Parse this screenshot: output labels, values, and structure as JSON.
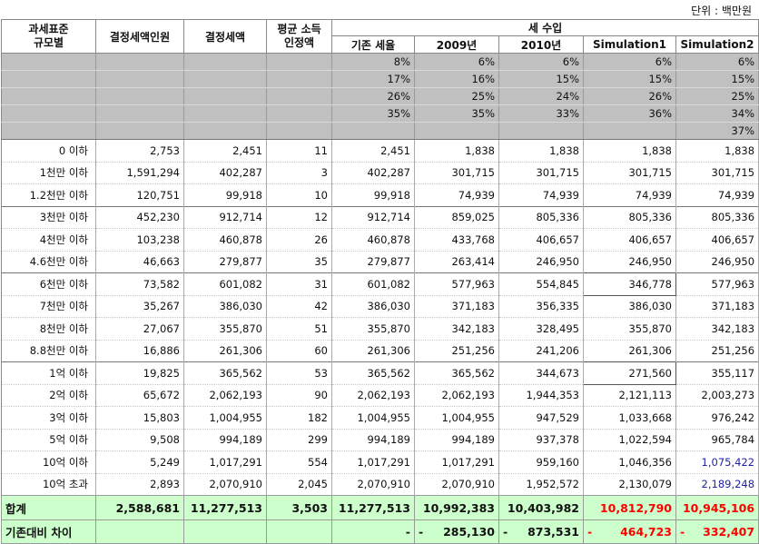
{
  "unit_label": "단위 : 백만원",
  "headers": {
    "bracket": "과세표준\n규모별",
    "payers": "결정세액인원",
    "tax": "결정세액",
    "avg_income": "평균 소득\n인정액",
    "revenue_group": "세 수입",
    "revenue_cols": [
      "기존 세율",
      "2009년",
      "2010년",
      "Simulation1",
      "Simulation2"
    ]
  },
  "rate_rows": [
    [
      "8%",
      "6%",
      "6%",
      "6%",
      "6%"
    ],
    [
      "17%",
      "16%",
      "15%",
      "15%",
      "15%"
    ],
    [
      "26%",
      "25%",
      "24%",
      "26%",
      "25%"
    ],
    [
      "35%",
      "35%",
      "33%",
      "36%",
      "34%"
    ],
    [
      "",
      "",
      "",
      "",
      "37%"
    ]
  ],
  "rows": [
    {
      "label": "0 이하",
      "payers": "2,753",
      "tax": "2,451",
      "avg": "11",
      "base": "2,451",
      "y2009": "1,838",
      "y2010": "1,838",
      "sim1": "1,838",
      "sim2": "1,838"
    },
    {
      "label": "1천만 이하",
      "payers": "1,591,294",
      "tax": "402,287",
      "avg": "3",
      "base": "402,287",
      "y2009": "301,715",
      "y2010": "301,715",
      "sim1": "301,715",
      "sim2": "301,715"
    },
    {
      "label": "1.2천만 이하",
      "payers": "120,751",
      "tax": "99,918",
      "avg": "10",
      "base": "99,918",
      "y2009": "74,939",
      "y2010": "74,939",
      "sim1": "74,939",
      "sim2": "74,939"
    },
    {
      "label": "3천만 이하",
      "payers": "452,230",
      "tax": "912,714",
      "avg": "12",
      "base": "912,714",
      "y2009": "859,025",
      "y2010": "805,336",
      "sim1": "805,336",
      "sim2": "805,336"
    },
    {
      "label": "4천만 이하",
      "payers": "103,238",
      "tax": "460,878",
      "avg": "26",
      "base": "460,878",
      "y2009": "433,768",
      "y2010": "406,657",
      "sim1": "406,657",
      "sim2": "406,657"
    },
    {
      "label": "4.6천만 이하",
      "payers": "46,663",
      "tax": "279,877",
      "avg": "35",
      "base": "279,877",
      "y2009": "263,414",
      "y2010": "246,950",
      "sim1": "246,950",
      "sim2": "246,950"
    },
    {
      "label": "6천만 이하",
      "payers": "73,582",
      "tax": "601,082",
      "avg": "31",
      "base": "601,082",
      "y2009": "577,963",
      "y2010": "554,845",
      "sim1": "346,778",
      "sim2": "577,963"
    },
    {
      "label": "7천만 이하",
      "payers": "35,267",
      "tax": "386,030",
      "avg": "42",
      "base": "386,030",
      "y2009": "371,183",
      "y2010": "356,335",
      "sim1": "386,030",
      "sim2": "371,183"
    },
    {
      "label": "8천만 이하",
      "payers": "27,067",
      "tax": "355,870",
      "avg": "51",
      "base": "355,870",
      "y2009": "342,183",
      "y2010": "328,495",
      "sim1": "355,870",
      "sim2": "342,183"
    },
    {
      "label": "8.8천만 이하",
      "payers": "16,886",
      "tax": "261,306",
      "avg": "60",
      "base": "261,306",
      "y2009": "251,256",
      "y2010": "241,206",
      "sim1": "261,306",
      "sim2": "251,256"
    },
    {
      "label": "1억 이하",
      "payers": "19,825",
      "tax": "365,562",
      "avg": "53",
      "base": "365,562",
      "y2009": "365,562",
      "y2010": "344,673",
      "sim1": "271,560",
      "sim2": "355,117"
    },
    {
      "label": "2억 이하",
      "payers": "65,672",
      "tax": "2,062,193",
      "avg": "90",
      "base": "2,062,193",
      "y2009": "2,062,193",
      "y2010": "1,944,353",
      "sim1": "2,121,113",
      "sim2": "2,003,273"
    },
    {
      "label": "3억 이하",
      "payers": "15,803",
      "tax": "1,004,955",
      "avg": "182",
      "base": "1,004,955",
      "y2009": "1,004,955",
      "y2010": "947,529",
      "sim1": "1,033,668",
      "sim2": "976,242"
    },
    {
      "label": "5억 이하",
      "payers": "9,508",
      "tax": "994,189",
      "avg": "299",
      "base": "994,189",
      "y2009": "994,189",
      "y2010": "937,378",
      "sim1": "1,022,594",
      "sim2": "965,784"
    },
    {
      "label": "10억 이하",
      "payers": "5,249",
      "tax": "1,017,291",
      "avg": "554",
      "base": "1,017,291",
      "y2009": "1,017,291",
      "y2010": "959,160",
      "sim1": "1,046,356",
      "sim2": "1,075,422"
    },
    {
      "label": "10억 초과",
      "payers": "2,893",
      "tax": "2,070,910",
      "avg": "2,045",
      "base": "2,070,910",
      "y2009": "2,070,910",
      "y2010": "1,952,572",
      "sim1": "2,130,079",
      "sim2": "2,189,248"
    }
  ],
  "total": {
    "label": "합계",
    "payers": "2,588,681",
    "tax": "11,277,513",
    "avg": "3,503",
    "base": "11,277,513",
    "y2009": "10,992,383",
    "y2010": "10,403,982",
    "sim1": "10,812,790",
    "sim2": "10,945,106"
  },
  "diff": {
    "label": "기존대비 차이",
    "base": "-",
    "y2009_sign": "-",
    "y2009": "285,130",
    "y2010_sign": "-",
    "y2010": "873,531",
    "sim1_sign": "-",
    "sim1": "464,723",
    "sim2_sign": "-",
    "sim2": "332,407"
  },
  "colors": {
    "highlight": "#ccffcc",
    "rate_bg": "#c0c0c0",
    "red": "#ff0000",
    "blue": "#2222aa"
  }
}
